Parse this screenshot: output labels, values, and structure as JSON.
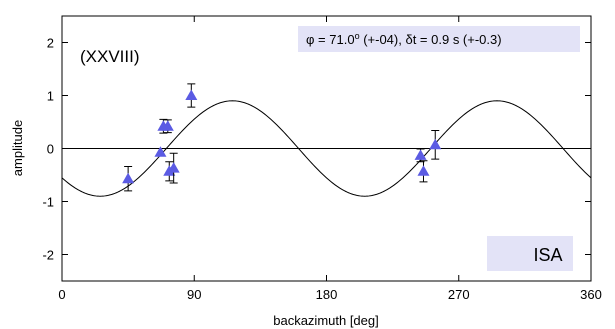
{
  "chart_data": {
    "type": "scatter",
    "xlabel": "backazimuth [deg]",
    "ylabel": "amplitude",
    "xlim": [
      0,
      360
    ],
    "ylim": [
      -2.5,
      2.5
    ],
    "xticks": [
      0,
      90,
      180,
      270,
      360
    ],
    "yticks": [
      -2,
      -1,
      0,
      1,
      2
    ],
    "xtick_labels": [
      "0",
      "90",
      "180",
      "270",
      "360"
    ],
    "ytick_labels": [
      "-2",
      "-1",
      "0",
      "1",
      "2"
    ],
    "grid": false,
    "zero_line": true,
    "panel_label": "(XXVIII)",
    "annotation": {
      "phi_symbol": "φ",
      "phi_eq": " = 71.0",
      "phi_deg": "o",
      "phi_err": " (+-04), ",
      "dt_symbol": "δ",
      "dt_text": "t = 0.9 s (+-0.3)"
    },
    "station": "ISA",
    "fit_curve": {
      "type": "sinusoid",
      "amplitude": 0.9,
      "period_deg": 180,
      "peak_deg": 116,
      "x_start": 0,
      "x_end": 360
    },
    "points": [
      {
        "x": 45,
        "y": -0.57,
        "err": 0.23
      },
      {
        "x": 67,
        "y": -0.07,
        "err": 0.07
      },
      {
        "x": 69,
        "y": 0.42,
        "err": 0.13
      },
      {
        "x": 72,
        "y": 0.42,
        "err": 0.12
      },
      {
        "x": 73,
        "y": -0.43,
        "err": 0.18
      },
      {
        "x": 76,
        "y": -0.37,
        "err": 0.28
      },
      {
        "x": 88,
        "y": 1.0,
        "err": 0.22
      },
      {
        "x": 244,
        "y": -0.13,
        "err": 0.12
      },
      {
        "x": 246,
        "y": -0.43,
        "err": 0.2
      },
      {
        "x": 254,
        "y": 0.07,
        "err": 0.27
      }
    ],
    "colors": {
      "marker": "#5b5be3",
      "errorbar": "#000000",
      "curve": "#000000",
      "label_box": "#e3e3f7"
    }
  }
}
